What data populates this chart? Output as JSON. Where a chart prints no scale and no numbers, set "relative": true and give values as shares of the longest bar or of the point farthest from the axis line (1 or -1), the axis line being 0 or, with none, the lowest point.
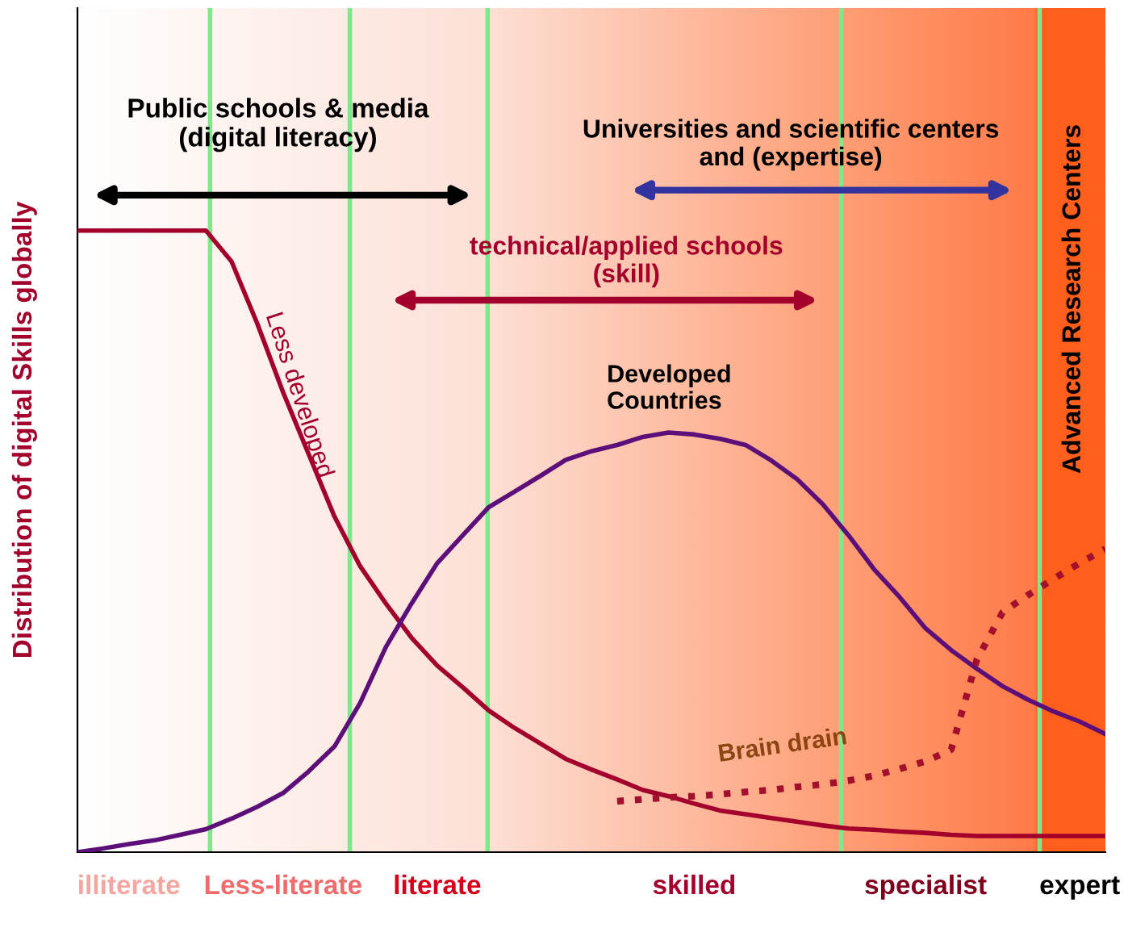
{
  "chart_data": {
    "type": "line",
    "relative": true,
    "ylabel": "Distribution of digital Skills globally",
    "categories": [
      null,
      null,
      "illiterate",
      null,
      null,
      null,
      null,
      null,
      "Less-literate",
      null,
      null,
      null,
      null,
      null,
      "literate",
      null,
      null,
      null,
      null,
      null,
      null,
      null,
      null,
      null,
      "skilled",
      null,
      null,
      null,
      null,
      null,
      null,
      null,
      null,
      "specialist",
      null,
      null,
      null,
      null,
      null,
      "expert",
      null
    ],
    "series": [
      {
        "name": "Less developed",
        "color": "#a3002c",
        "values": [
          1,
          1,
          1,
          1,
          1,
          1,
          0.95,
          0.85,
          0.74,
          0.64,
          0.54,
          0.46,
          0.4,
          0.345,
          0.3,
          0.265,
          0.228,
          0.2,
          0.175,
          0.15,
          0.133,
          0.117,
          0.1,
          0.09,
          0.078,
          0.067,
          0.061,
          0.055,
          0.049,
          0.043,
          0.038,
          0.036,
          0.033,
          0.031,
          0.028,
          0.026,
          0.026,
          0.026,
          0.026,
          0.026,
          0.026
        ]
      },
      {
        "name": "Developed Countries",
        "color": "#5c0f78",
        "values": [
          0,
          0.006,
          0.013,
          0.019,
          0.028,
          0.037,
          0.054,
          0.073,
          0.095,
          0.13,
          0.17,
          0.24,
          0.33,
          0.4,
          0.465,
          0.51,
          0.555,
          0.58,
          0.605,
          0.631,
          0.645,
          0.655,
          0.668,
          0.675,
          0.672,
          0.665,
          0.655,
          0.63,
          0.6,
          0.56,
          0.51,
          0.455,
          0.41,
          0.36,
          0.325,
          0.295,
          0.267,
          0.245,
          0.226,
          0.21,
          0.19
        ]
      },
      {
        "name": "Brain drain",
        "color": "#a3102c",
        "line_style": "dotted",
        "values": [
          null,
          null,
          null,
          null,
          null,
          null,
          null,
          null,
          null,
          null,
          null,
          null,
          null,
          null,
          null,
          null,
          null,
          null,
          null,
          null,
          null,
          0.082,
          0.085,
          0.088,
          0.09,
          0.093,
          0.097,
          0.1,
          0.105,
          0.109,
          0.115,
          0.123,
          0.134,
          0.146,
          0.165,
          0.31,
          0.386,
          0.414,
          0.44,
          0.465,
          0.488
        ]
      }
    ],
    "annotations": [
      "Public schools & media\n(digital literacy)",
      "Universities and scientific centers\nand (expertise)",
      "technical/applied schools\n(skill)",
      "Advanced Research Centers"
    ]
  }
}
